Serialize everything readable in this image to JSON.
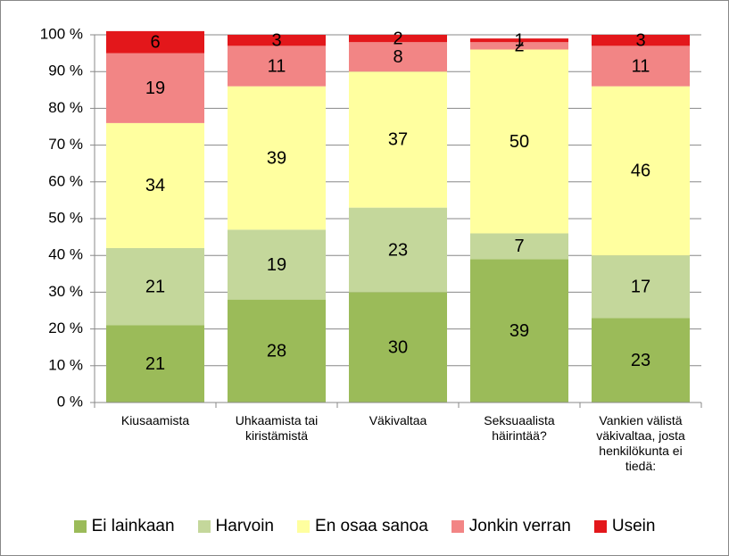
{
  "chart_data": {
    "type": "stacked_bar",
    "categories": [
      "Kiusaamista",
      "Uhkaamista tai kiristämistä",
      "Väkivaltaa",
      "Seksuaalista häirintää?",
      "Vankien välistä väkivaltaa, josta henkilökunta ei tiedä:"
    ],
    "series": [
      {
        "name": "Ei lainkaan",
        "color": "#9bbb59",
        "values": [
          21,
          28,
          30,
          39,
          23
        ]
      },
      {
        "name": "Harvoin",
        "color": "#c4d79b",
        "values": [
          21,
          19,
          23,
          7,
          17
        ]
      },
      {
        "name": "En osaa sanoa",
        "color": "#ffff9f",
        "values": [
          34,
          39,
          37,
          50,
          46
        ]
      },
      {
        "name": "Jonkin verran",
        "color": "#f28585",
        "values": [
          19,
          11,
          8,
          2,
          11
        ]
      },
      {
        "name": "Usein",
        "color": "#e3171b",
        "values": [
          6,
          3,
          2,
          1,
          3
        ]
      }
    ],
    "ylim": [
      0,
      100
    ],
    "yticks": [
      {
        "value": 0,
        "label": "0 %"
      },
      {
        "value": 10,
        "label": "10 %"
      },
      {
        "value": 20,
        "label": "20 %"
      },
      {
        "value": 30,
        "label": "30 %"
      },
      {
        "value": 40,
        "label": "40 %"
      },
      {
        "value": 50,
        "label": "50 %"
      },
      {
        "value": 60,
        "label": "60 %"
      },
      {
        "value": 70,
        "label": "70 %"
      },
      {
        "value": 80,
        "label": "80 %"
      },
      {
        "value": 90,
        "label": "90 %"
      },
      {
        "value": 100,
        "label": "100 %"
      }
    ],
    "grid": true,
    "legend": "bottom"
  }
}
